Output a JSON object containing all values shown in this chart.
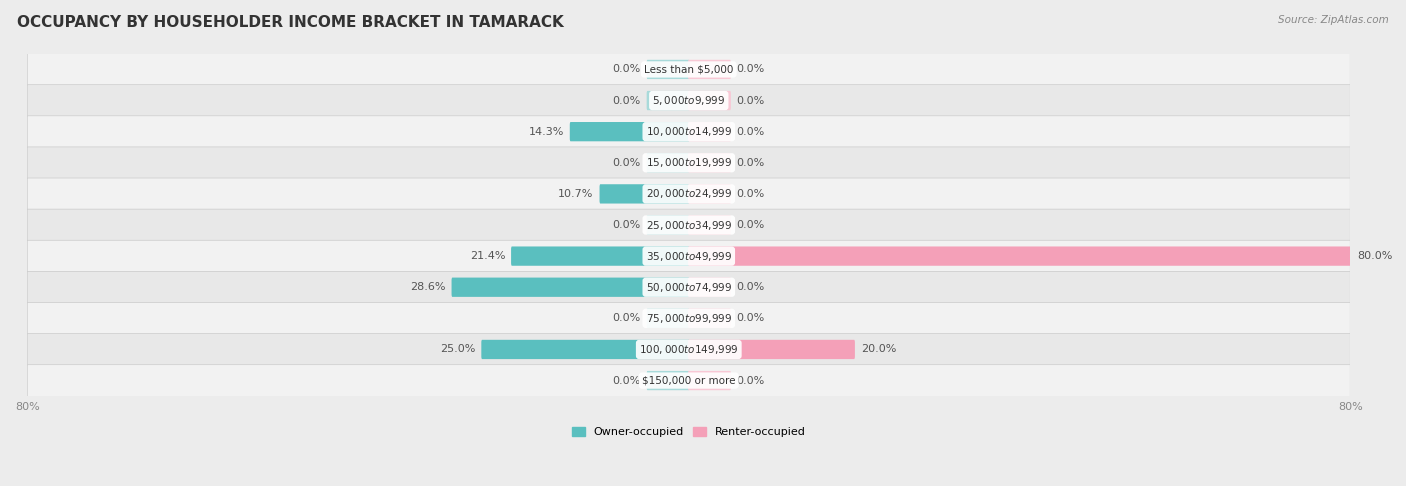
{
  "title": "OCCUPANCY BY HOUSEHOLDER INCOME BRACKET IN TAMARACK",
  "source": "Source: ZipAtlas.com",
  "categories": [
    "Less than $5,000",
    "$5,000 to $9,999",
    "$10,000 to $14,999",
    "$15,000 to $19,999",
    "$20,000 to $24,999",
    "$25,000 to $34,999",
    "$35,000 to $49,999",
    "$50,000 to $74,999",
    "$75,000 to $99,999",
    "$100,000 to $149,999",
    "$150,000 or more"
  ],
  "owner_values": [
    0.0,
    0.0,
    14.3,
    0.0,
    10.7,
    0.0,
    21.4,
    28.6,
    0.0,
    25.0,
    0.0
  ],
  "renter_values": [
    0.0,
    0.0,
    0.0,
    0.0,
    0.0,
    0.0,
    80.0,
    0.0,
    0.0,
    20.0,
    0.0
  ],
  "owner_color": "#5abfbf",
  "renter_color": "#f4a0b8",
  "owner_color_light": "#a8dada",
  "renter_color_light": "#f8c8d5",
  "background_color": "#ececec",
  "row_bg_colors": [
    "#f2f2f2",
    "#e8e8e8"
  ],
  "max_value": 80.0,
  "stub_val": 5.0,
  "title_fontsize": 11,
  "label_fontsize": 8,
  "cat_fontsize": 7.5,
  "tick_fontsize": 8
}
